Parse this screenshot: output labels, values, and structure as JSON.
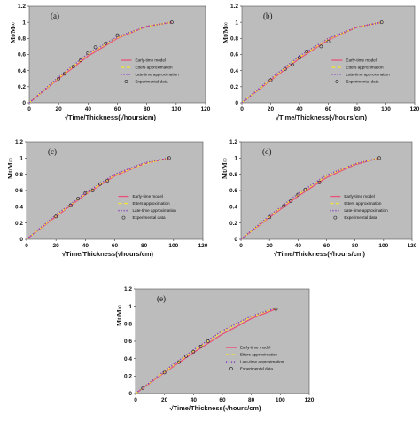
{
  "chart_data": [
    {
      "panel_label": "(a)",
      "type": "line",
      "xlabel": "√Time/Thickness(√hours/cm)",
      "ylabel": "Mt/M∞",
      "xlim": [
        0,
        120
      ],
      "ylim": [
        0,
        1.2
      ],
      "x_ticks": [
        "0",
        "20",
        "40",
        "60",
        "80",
        "100",
        "120"
      ],
      "y_ticks": [
        "0",
        "0.2",
        "0.4",
        "0.6",
        "0.8",
        "1",
        "1.2"
      ],
      "legend": [
        "Early-time model",
        "Etters approximation",
        "Late-time approximation",
        "Experimental data"
      ],
      "legend_position": "right",
      "background": "#bcbcbc",
      "series": [
        {
          "name": "Early-time model",
          "style": "solid",
          "color": "#e8527a",
          "x": [
            0,
            20,
            40,
            60,
            80,
            97
          ],
          "y": [
            0,
            0.3,
            0.58,
            0.8,
            0.95,
            1.0
          ]
        },
        {
          "name": "Etters approximation",
          "style": "dashed",
          "color": "#f2e23a",
          "x": [
            0,
            20,
            40,
            60,
            80,
            97
          ],
          "y": [
            0,
            0.31,
            0.6,
            0.81,
            0.95,
            1.0
          ]
        },
        {
          "name": "Late-time approximation",
          "style": "dotted",
          "color": "#8a3fc0",
          "x": [
            0,
            20,
            40,
            60,
            80,
            97
          ],
          "y": [
            0,
            0.32,
            0.61,
            0.82,
            0.95,
            1.0
          ]
        },
        {
          "name": "Experimental data",
          "style": "markers",
          "x": [
            20,
            24,
            30,
            35,
            40,
            45,
            52,
            60,
            97
          ],
          "y": [
            0.3,
            0.36,
            0.45,
            0.53,
            0.62,
            0.69,
            0.74,
            0.84,
            1.0
          ]
        }
      ]
    },
    {
      "panel_label": "(b)",
      "type": "line",
      "xlabel": "√Time/Thickness(√hours/cm)",
      "ylabel": "Mt/M∞",
      "xlim": [
        0,
        120
      ],
      "ylim": [
        0,
        1.2
      ],
      "x_ticks": [
        "0",
        "20",
        "40",
        "60",
        "80",
        "100",
        "120"
      ],
      "y_ticks": [
        "0",
        "0.2",
        "0.4",
        "0.6",
        "0.8",
        "1",
        "1.2"
      ],
      "legend": [
        "Early-time model",
        "Etters approximation",
        "Late-time approximation",
        "Experimental data"
      ],
      "legend_position": "right",
      "background": "#bcbcbc",
      "series": [
        {
          "name": "Early-time model",
          "style": "solid",
          "color": "#e8527a",
          "x": [
            0,
            20,
            40,
            60,
            80,
            97
          ],
          "y": [
            0,
            0.28,
            0.55,
            0.78,
            0.94,
            1.0
          ]
        },
        {
          "name": "Etters approximation",
          "style": "dashed",
          "color": "#f2e23a",
          "x": [
            0,
            20,
            40,
            60,
            80,
            97
          ],
          "y": [
            0,
            0.29,
            0.57,
            0.79,
            0.94,
            1.0
          ]
        },
        {
          "name": "Late-time approximation",
          "style": "dotted",
          "color": "#8a3fc0",
          "x": [
            0,
            20,
            40,
            60,
            80,
            97
          ],
          "y": [
            0,
            0.3,
            0.58,
            0.8,
            0.94,
            1.0
          ]
        },
        {
          "name": "Experimental data",
          "style": "markers",
          "x": [
            20,
            30,
            35,
            40,
            45,
            55,
            60,
            97
          ],
          "y": [
            0.28,
            0.42,
            0.47,
            0.56,
            0.64,
            0.7,
            0.76,
            1.0
          ]
        }
      ]
    },
    {
      "panel_label": "(c)",
      "type": "line",
      "xlabel": "√Time/Thickness(√hours/cm)",
      "ylabel": "Mt/M∞",
      "xlim": [
        0,
        120
      ],
      "ylim": [
        0,
        1.2
      ],
      "x_ticks": [
        "0",
        "20",
        "40",
        "60",
        "80",
        "100",
        "120"
      ],
      "y_ticks": [
        "0",
        "0.2",
        "0.4",
        "0.6",
        "0.8",
        "1",
        "1.2"
      ],
      "legend": [
        "Early-time model",
        "Etters approximation",
        "Late-time approximation",
        "Experimental data"
      ],
      "legend_position": "right",
      "background": "#bcbcbc",
      "series": [
        {
          "name": "Early-time model",
          "style": "solid",
          "color": "#e8527a",
          "x": [
            0,
            20,
            40,
            60,
            80,
            97
          ],
          "y": [
            0,
            0.28,
            0.55,
            0.78,
            0.93,
            1.0
          ]
        },
        {
          "name": "Etters approximation",
          "style": "dashed",
          "color": "#f2e23a",
          "x": [
            0,
            20,
            40,
            60,
            80,
            97
          ],
          "y": [
            0,
            0.29,
            0.56,
            0.79,
            0.93,
            1.0
          ]
        },
        {
          "name": "Late-time approximation",
          "style": "dotted",
          "color": "#8a3fc0",
          "x": [
            0,
            20,
            40,
            60,
            80,
            97
          ],
          "y": [
            0,
            0.3,
            0.57,
            0.8,
            0.94,
            1.0
          ]
        },
        {
          "name": "Experimental data",
          "style": "markers",
          "x": [
            20,
            30,
            35,
            40,
            45,
            50,
            55,
            97
          ],
          "y": [
            0.28,
            0.42,
            0.5,
            0.57,
            0.6,
            0.68,
            0.72,
            1.0
          ]
        }
      ]
    },
    {
      "panel_label": "(d)",
      "type": "line",
      "xlabel": "√Time/Thickness(√hours/cm)",
      "ylabel": "Mt/M∞",
      "xlim": [
        0,
        120
      ],
      "ylim": [
        0,
        1.2
      ],
      "x_ticks": [
        "0",
        "20",
        "40",
        "60",
        "80",
        "100",
        "120"
      ],
      "y_ticks": [
        "0",
        "0.2",
        "0.4",
        "0.6",
        "0.8",
        "1",
        "1.2"
      ],
      "legend": [
        "Early-time model",
        "Etters approximation",
        "Late-time approximation",
        "Experimental data"
      ],
      "legend_position": "right",
      "background": "#bcbcbc",
      "series": [
        {
          "name": "Early-time model",
          "style": "solid",
          "color": "#e8527a",
          "x": [
            0,
            20,
            40,
            60,
            80,
            97
          ],
          "y": [
            0,
            0.27,
            0.53,
            0.76,
            0.92,
            1.0
          ]
        },
        {
          "name": "Etters approximation",
          "style": "dashed",
          "color": "#f2e23a",
          "x": [
            0,
            20,
            40,
            60,
            80,
            97
          ],
          "y": [
            0,
            0.28,
            0.55,
            0.78,
            0.93,
            1.0
          ]
        },
        {
          "name": "Late-time approximation",
          "style": "dotted",
          "color": "#8a3fc0",
          "x": [
            0,
            20,
            40,
            60,
            80,
            97
          ],
          "y": [
            0,
            0.29,
            0.56,
            0.79,
            0.93,
            1.0
          ]
        },
        {
          "name": "Experimental data",
          "style": "markers",
          "x": [
            20,
            30,
            35,
            40,
            45,
            55,
            97
          ],
          "y": [
            0.27,
            0.41,
            0.47,
            0.55,
            0.61,
            0.7,
            1.0
          ]
        }
      ]
    },
    {
      "panel_label": "(e)",
      "type": "line",
      "xlabel": "√Time/Thickness(√hours/cm)",
      "ylabel": "Mt/M∞",
      "xlim": [
        0,
        120
      ],
      "ylim": [
        0,
        1.2
      ],
      "x_ticks": [
        "0",
        "20",
        "40",
        "60",
        "80",
        "100",
        "120"
      ],
      "y_ticks": [
        "0",
        "0.2",
        "0.4",
        "0.6",
        "0.8",
        "1",
        "1.2"
      ],
      "legend": [
        "Early-time model",
        "Etters approximation",
        "Late-time approximation",
        "Experimental data"
      ],
      "legend_position": "right",
      "background": "#bcbcbc",
      "series": [
        {
          "name": "Early-time model",
          "style": "solid",
          "color": "#e8527a",
          "x": [
            0,
            20,
            40,
            60,
            80,
            97
          ],
          "y": [
            0,
            0.24,
            0.47,
            0.68,
            0.86,
            0.97
          ]
        },
        {
          "name": "Etters approximation",
          "style": "dashed",
          "color": "#f2e23a",
          "x": [
            0,
            20,
            40,
            60,
            80,
            97
          ],
          "y": [
            0,
            0.25,
            0.49,
            0.71,
            0.88,
            0.98
          ]
        },
        {
          "name": "Late-time approximation",
          "style": "dotted",
          "color": "#8a3fc0",
          "x": [
            0,
            20,
            40,
            60,
            80,
            97
          ],
          "y": [
            0,
            0.26,
            0.5,
            0.72,
            0.89,
            0.98
          ]
        },
        {
          "name": "Experimental data",
          "style": "markers",
          "x": [
            5,
            20,
            30,
            35,
            40,
            45,
            50,
            97
          ],
          "y": [
            0.06,
            0.24,
            0.36,
            0.43,
            0.48,
            0.54,
            0.6,
            0.97
          ]
        }
      ]
    }
  ]
}
